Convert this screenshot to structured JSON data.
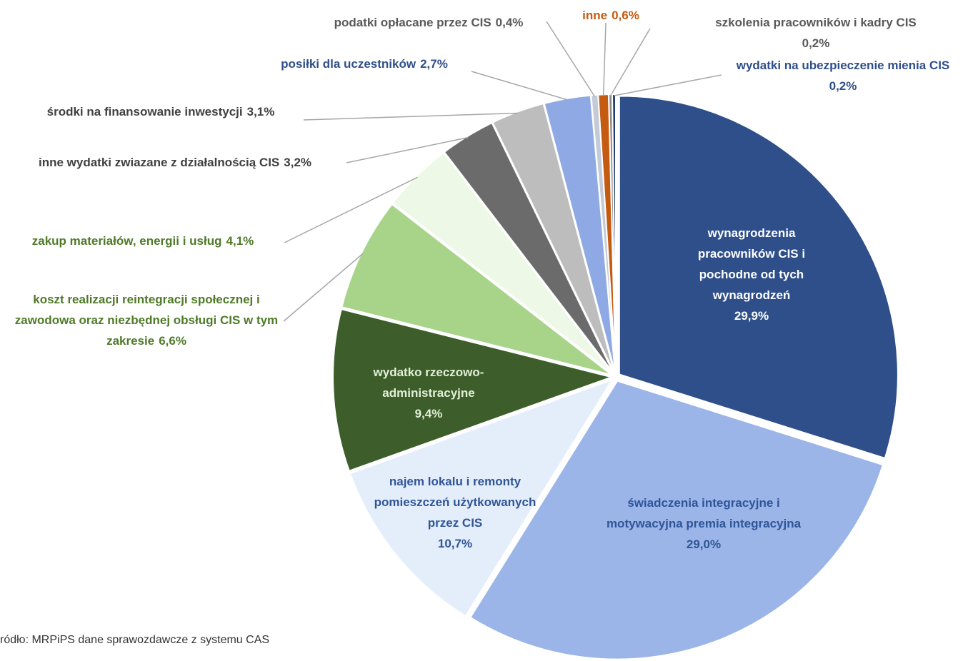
{
  "chart_data": {
    "type": "pie",
    "categories": [
      "wynagrodzenia pracowników CIS i pochodne od tych wynagrodzeń",
      "świadczenia integracyjne i motywacyjna premia integracyjna",
      "najem lokalu i remonty pomieszczeń użytkowanych przez CIS",
      "wydatko rzeczowo-administracyjne",
      "koszt realizacji reintegracji społecznej i zawodowa oraz niezbędnej obsługi CIS w tym zakresie",
      "zakup materiałów, energii i usług",
      "inne wydatki zwiazane z działalnością CIS",
      "środki na finansowanie inwestycji",
      "posiłki dla uczestników",
      "podatki opłacane przez CIS",
      "inne",
      "szkolenia pracowników i kadry CIS",
      "wydatki na ubezpieczenie mienia CIS"
    ],
    "values": [
      29.9,
      29.0,
      10.7,
      9.4,
      6.6,
      4.1,
      3.2,
      3.1,
      2.7,
      0.4,
      0.6,
      0.2,
      0.2
    ],
    "value_labels": [
      "29,9%",
      "29,0%",
      "10,7%",
      "9,4%",
      "6,6%",
      "4,1%",
      "3,2%",
      "3,1%",
      "2,7%",
      "0,4%",
      "0,6%",
      "0,2%",
      "0,2%"
    ],
    "colors": [
      "#2f4f8a",
      "#9bb5e8",
      "#e4eefb",
      "#3d5e2a",
      "#a8d48a",
      "#eef8e6",
      "#6b6b6b",
      "#bdbdbd",
      "#8ea9e3",
      "#c3cad8",
      "#c55a11",
      "#8a8a8a",
      "#1f3864"
    ],
    "source": "ródło: MRPiPS dane sprawozdawcze z systemu CAS"
  }
}
